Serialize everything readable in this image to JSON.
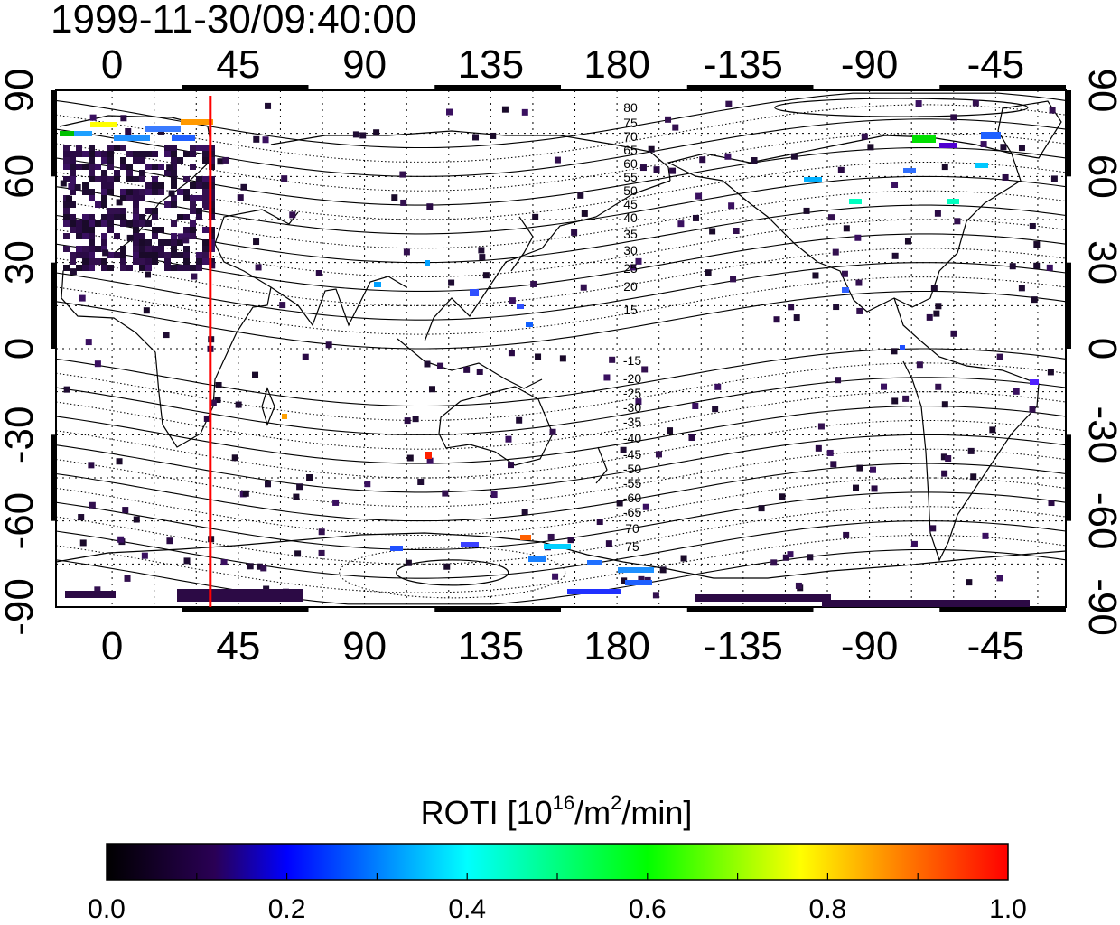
{
  "title": "1999-11-30/09:40:00",
  "map": {
    "lon_ticks": [
      "0",
      "45",
      "90",
      "135",
      "180",
      "-135",
      "-90",
      "-45"
    ],
    "lat_ticks": [
      "90",
      "60",
      "30",
      "0",
      "-30",
      "-60",
      "-90"
    ],
    "lon_range": [
      -20,
      340
    ],
    "lat_range": [
      -90,
      90
    ],
    "terminator_longitude": 35,
    "terminator_color": "#ff0000",
    "north_contour_labels": [
      "80",
      "75",
      "70",
      "65",
      "60",
      "55",
      "50",
      "45",
      "40",
      "35",
      "30",
      "25",
      "20",
      "15"
    ],
    "south_contour_labels": [
      "-15",
      "-20",
      "-25",
      "-30",
      "-35",
      "-40",
      "-45",
      "-50",
      "-55",
      "-60",
      "-65",
      "70",
      "75"
    ]
  },
  "colorbar": {
    "title_main": "ROTI  [10",
    "title_exp1": "16",
    "title_mid": "/m",
    "title_exp2": "2",
    "title_end": "/min]",
    "tick_labels": [
      "0.0",
      "0.2",
      "0.4",
      "0.6",
      "0.8",
      "1.0"
    ],
    "range": [
      0.0,
      1.0
    ],
    "colors": [
      "#000000",
      "#3a0070",
      "#0000ff",
      "#00ffff",
      "#00ff00",
      "#ffff00",
      "#ff8000",
      "#ff0000"
    ]
  }
}
